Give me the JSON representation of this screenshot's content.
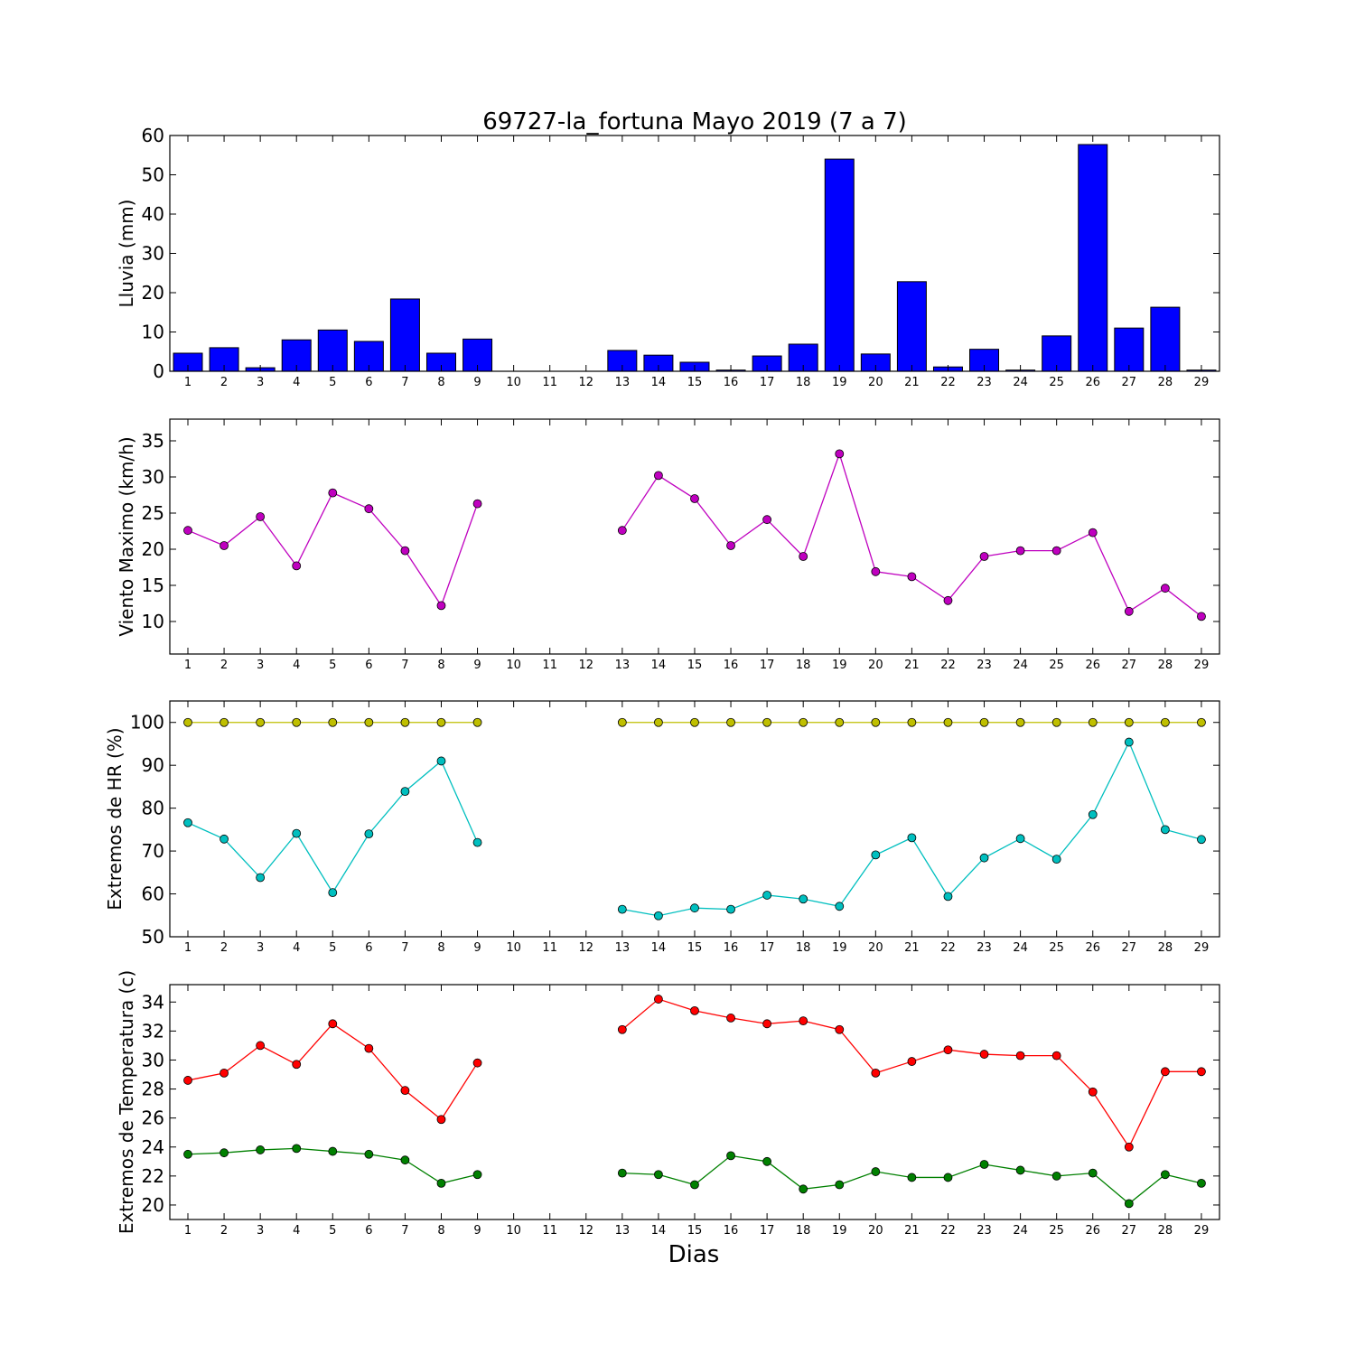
{
  "chart_data": [
    {
      "type": "bar",
      "title": "69727-la_fortuna Mayo 2019  (7 a 7)",
      "ylabel": "Lluvia (mm)",
      "xlabel": "",
      "ylim": [
        0,
        60
      ],
      "yticks": [
        0,
        10,
        20,
        30,
        40,
        50,
        60
      ],
      "categories": [
        "1",
        "2",
        "3",
        "4",
        "5",
        "6",
        "7",
        "8",
        "9",
        "10",
        "11",
        "12",
        "13",
        "14",
        "15",
        "16",
        "17",
        "18",
        "19",
        "20",
        "21",
        "22",
        "23",
        "24",
        "25",
        "26",
        "27",
        "28",
        "29"
      ],
      "series": [
        {
          "color": "#0000ff",
          "values": [
            4.6,
            6.0,
            0.9,
            8.0,
            10.5,
            7.6,
            18.4,
            4.6,
            8.2,
            0,
            0,
            0,
            5.3,
            4.1,
            2.3,
            0.3,
            3.9,
            6.9,
            54.0,
            4.4,
            22.8,
            1.1,
            5.6,
            0.3,
            9.0,
            57.7,
            11.0,
            16.3,
            0.3
          ]
        }
      ],
      "grid": false
    },
    {
      "type": "line",
      "ylabel": "Viento Maximo (km/h)",
      "ylim": [
        5.5,
        38
      ],
      "yticks": [
        10,
        15,
        20,
        25,
        30,
        35
      ],
      "categories": [
        "1",
        "2",
        "3",
        "4",
        "5",
        "6",
        "7",
        "8",
        "9",
        "10",
        "11",
        "12",
        "13",
        "14",
        "15",
        "16",
        "17",
        "18",
        "19",
        "20",
        "21",
        "22",
        "23",
        "24",
        "25",
        "26",
        "27",
        "28",
        "29"
      ],
      "series": [
        {
          "color": "#bf00bf",
          "values": [
            22.6,
            20.5,
            24.5,
            17.7,
            27.8,
            25.6,
            19.8,
            12.2,
            26.3,
            null,
            null,
            null,
            22.6,
            30.2,
            27.0,
            20.5,
            24.1,
            19.0,
            33.2,
            16.9,
            16.2,
            12.9,
            19.0,
            19.8,
            19.8,
            22.3,
            11.4,
            14.6,
            10.7
          ]
        }
      ],
      "grid": false
    },
    {
      "type": "line",
      "ylabel": "Extremos de HR (%)",
      "ylim": [
        50,
        105
      ],
      "yticks": [
        50,
        60,
        70,
        80,
        90,
        100
      ],
      "categories": [
        "1",
        "2",
        "3",
        "4",
        "5",
        "6",
        "7",
        "8",
        "9",
        "10",
        "11",
        "12",
        "13",
        "14",
        "15",
        "16",
        "17",
        "18",
        "19",
        "20",
        "21",
        "22",
        "23",
        "24",
        "25",
        "26",
        "27",
        "28",
        "29"
      ],
      "series": [
        {
          "color": "#bfbf00",
          "values": [
            100,
            100,
            100,
            100,
            100,
            100,
            100,
            100,
            100,
            null,
            null,
            null,
            100,
            100,
            100,
            100,
            100,
            100,
            100,
            100,
            100,
            100,
            100,
            100,
            100,
            100,
            100,
            100,
            100
          ]
        },
        {
          "color": "#00bfbf",
          "values": [
            76.6,
            72.8,
            63.8,
            74.1,
            60.3,
            74.0,
            83.9,
            91.0,
            72.0,
            null,
            null,
            null,
            56.4,
            54.9,
            56.7,
            56.4,
            59.7,
            58.8,
            57.1,
            69.1,
            73.1,
            59.4,
            68.4,
            72.9,
            68.1,
            78.5,
            95.4,
            75.0,
            72.7
          ]
        }
      ],
      "grid": false
    },
    {
      "type": "line",
      "ylabel": "Extremos de Temperatura (c)",
      "xlabel": "Dias",
      "ylim": [
        19,
        35.2
      ],
      "yticks": [
        20,
        22,
        24,
        26,
        28,
        30,
        32,
        34
      ],
      "categories": [
        "1",
        "2",
        "3",
        "4",
        "5",
        "6",
        "7",
        "8",
        "9",
        "10",
        "11",
        "12",
        "13",
        "14",
        "15",
        "16",
        "17",
        "18",
        "19",
        "20",
        "21",
        "22",
        "23",
        "24",
        "25",
        "26",
        "27",
        "28",
        "29"
      ],
      "series": [
        {
          "color": "#ff0000",
          "values": [
            28.6,
            29.1,
            31.0,
            29.7,
            32.5,
            30.8,
            27.9,
            25.9,
            29.8,
            null,
            null,
            null,
            32.1,
            34.2,
            33.4,
            32.9,
            32.5,
            32.7,
            32.1,
            29.1,
            29.9,
            30.7,
            30.4,
            30.3,
            30.3,
            27.8,
            24.0,
            29.2,
            29.2
          ]
        },
        {
          "color": "#008000",
          "values": [
            23.5,
            23.6,
            23.8,
            23.9,
            23.7,
            23.5,
            23.1,
            21.5,
            22.1,
            null,
            null,
            null,
            22.2,
            22.1,
            21.4,
            23.4,
            23.0,
            21.1,
            21.4,
            22.3,
            21.9,
            21.9,
            22.8,
            22.4,
            22.0,
            22.2,
            20.1,
            22.1,
            21.5
          ]
        }
      ],
      "grid": false
    }
  ]
}
